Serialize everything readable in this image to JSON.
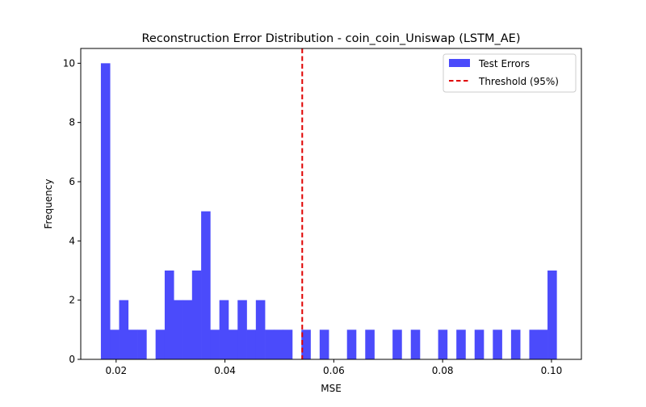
{
  "chart_data": {
    "type": "bar",
    "title": "Reconstruction Error Distribution - coin_coin_Uniswap (LSTM_AE)",
    "xlabel": "MSE",
    "ylabel": "Frequency",
    "xlim": [
      0.0135,
      0.1055
    ],
    "ylim": [
      0,
      10.5
    ],
    "xticks": [
      0.02,
      0.04,
      0.06,
      0.08,
      0.1
    ],
    "xtick_labels": [
      "0.02",
      "0.04",
      "0.06",
      "0.08",
      "0.10"
    ],
    "yticks": [
      0,
      2,
      4,
      6,
      8,
      10
    ],
    "ytick_labels": [
      "0",
      "2",
      "4",
      "6",
      "8",
      "10"
    ],
    "bins": {
      "start": 0.0172,
      "width": 0.001675,
      "count": 50
    },
    "counts": [
      10,
      1,
      2,
      1,
      1,
      0,
      1,
      3,
      2,
      2,
      3,
      5,
      1,
      2,
      1,
      2,
      1,
      2,
      1,
      1,
      1,
      0,
      1,
      0,
      1,
      0,
      0,
      1,
      0,
      1,
      0,
      0,
      1,
      0,
      1,
      0,
      0,
      1,
      0,
      1,
      0,
      1,
      0,
      1,
      0,
      1,
      0,
      1,
      1,
      3
    ],
    "bar_color": "#4b4bfb",
    "threshold": {
      "value": 0.0542,
      "color": "#e00000",
      "label": "Threshold (95%)"
    },
    "series": [
      {
        "name": "Test Errors",
        "color": "#4b4bfb"
      }
    ],
    "legend_position": "top-right",
    "grid": false
  }
}
